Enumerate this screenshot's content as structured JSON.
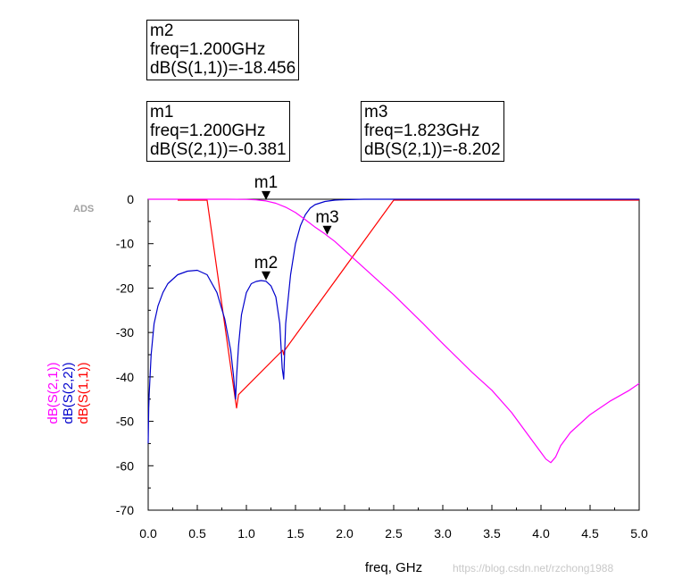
{
  "app_tag": "ADS",
  "watermark": "https://blog.csdn.net/rzchong1988",
  "marker_boxes": [
    {
      "id": "m2",
      "name": "m2",
      "freq_line": "freq=1.200GHz",
      "value_line": "dB(S(1,1))=-18.456"
    },
    {
      "id": "m1",
      "name": "m1",
      "freq_line": "freq=1.200GHz",
      "value_line": "dB(S(2,1))=-0.381"
    },
    {
      "id": "m3",
      "name": "m3",
      "freq_line": "freq=1.823GHz",
      "value_line": "dB(S(2,1))=-8.202"
    }
  ],
  "chart_data": {
    "type": "line",
    "xlabel": "freq, GHz",
    "ylabels": [
      {
        "text": "dB(S(2,1))",
        "color": "#ff00ff"
      },
      {
        "text": "dB(S(2,2))",
        "color": "#0000cc"
      },
      {
        "text": "dB(S(1,1))",
        "color": "#ff0000"
      }
    ],
    "xlim": [
      0,
      5
    ],
    "ylim": [
      -70,
      0
    ],
    "xticks": [
      "0.0",
      "0.5",
      "1.0",
      "1.5",
      "2.0",
      "2.5",
      "3.0",
      "3.5",
      "4.0",
      "4.5",
      "5.0"
    ],
    "yticks": [
      "0",
      "-10",
      "-20",
      "-30",
      "-40",
      "-50",
      "-60",
      "-70"
    ],
    "markers": [
      {
        "label": "m1",
        "x": 1.2,
        "y": -0.381
      },
      {
        "label": "m2",
        "x": 1.2,
        "y": -18.456
      },
      {
        "label": "m3",
        "x": 1.823,
        "y": -8.202
      }
    ],
    "series": [
      {
        "name": "dB(S(2,1))",
        "color": "#ff00ff",
        "x": [
          0,
          0.2,
          0.5,
          0.8,
          1.0,
          1.1,
          1.2,
          1.3,
          1.4,
          1.5,
          1.6,
          1.7,
          1.8,
          1.823,
          1.9,
          2.0,
          2.2,
          2.5,
          2.8,
          3.0,
          3.3,
          3.5,
          3.7,
          3.9,
          4.0,
          4.05,
          4.1,
          4.15,
          4.2,
          4.3,
          4.5,
          4.7,
          4.9,
          5.0
        ],
        "y": [
          0,
          0,
          0,
          0,
          -0.05,
          -0.15,
          -0.381,
          -0.9,
          -1.8,
          -3.0,
          -4.6,
          -6.3,
          -7.8,
          -8.202,
          -9.5,
          -11.5,
          -15.5,
          -21.5,
          -28,
          -32.5,
          -39,
          -43,
          -48,
          -54,
          -57,
          -58.5,
          -59.3,
          -58,
          -55.5,
          -52.5,
          -48.5,
          -45.5,
          -43,
          -41.5
        ]
      },
      {
        "name": "dB(S(2,2))",
        "color": "#0000cc",
        "x": [
          0,
          0.005,
          0.01,
          0.03,
          0.06,
          0.1,
          0.15,
          0.2,
          0.3,
          0.4,
          0.5,
          0.6,
          0.7,
          0.78,
          0.84,
          0.87,
          0.89,
          0.9,
          0.92,
          0.95,
          1.0,
          1.05,
          1.1,
          1.15,
          1.2,
          1.25,
          1.3,
          1.34,
          1.365,
          1.38,
          1.4,
          1.45,
          1.5,
          1.55,
          1.6,
          1.65,
          1.7,
          1.8,
          1.9,
          2.0,
          2.2,
          2.5,
          3.0,
          3.5,
          4.0,
          4.5,
          5.0
        ],
        "y": [
          -55,
          -47,
          -44,
          -35,
          -28,
          -24,
          -21,
          -19,
          -17,
          -16.2,
          -16,
          -17,
          -21,
          -27,
          -34,
          -40,
          -45,
          -40,
          -33,
          -26,
          -21,
          -19,
          -18.5,
          -18.3,
          -18.456,
          -19.5,
          -22,
          -28,
          -38,
          -40.5,
          -28,
          -17,
          -10,
          -6,
          -3.5,
          -2,
          -1.2,
          -0.5,
          -0.2,
          -0.1,
          0,
          0,
          0,
          0,
          0,
          0,
          0
        ]
      },
      {
        "name": "dB(S(1,1))",
        "color": "#ff0000",
        "x": [
          0.3,
          0.6,
          0.88,
          0.9,
          0.92,
          1.37,
          1.38,
          1.39,
          2.5,
          3.3,
          3.8,
          4.4,
          5.0
        ],
        "y": [
          -0.2,
          -0.2,
          -44,
          -47,
          -44,
          -34,
          -35,
          -34,
          -0.2,
          -0.2,
          -0.2,
          -0.2,
          -0.2
        ]
      }
    ]
  }
}
